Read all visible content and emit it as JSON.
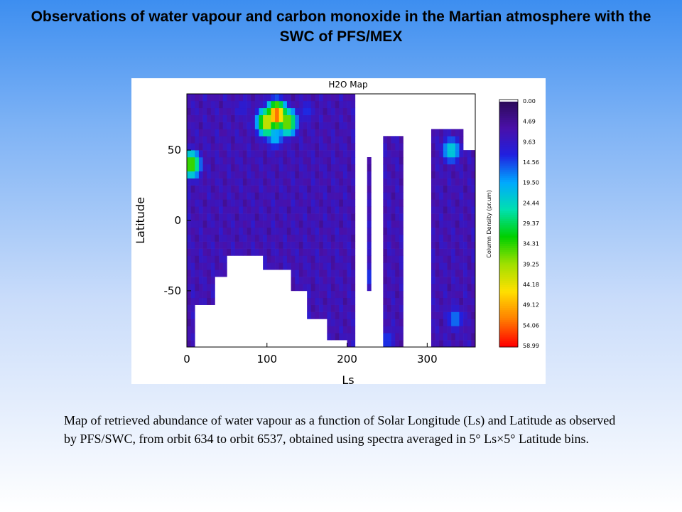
{
  "slide": {
    "title": "Observations of water vapour and carbon monoxide in the Martian atmosphere with the SWC of PFS/MEX",
    "caption": "Map of retrieved abundance of water vapour as a function of Solar Longitude (Ls) and Latitude as observed by PFS/SWC, from orbit 634 to orbit 6537, obtained using spectra averaged in 5° Ls×5° Latitude bins."
  },
  "chart_data": {
    "type": "heatmap",
    "title": "H2O Map",
    "xlabel": "Ls",
    "ylabel": "Latitude",
    "xlim": [
      0,
      360
    ],
    "ylim": [
      -90,
      90
    ],
    "x_ticks": [
      0,
      100,
      200,
      300
    ],
    "y_ticks": [
      50,
      0,
      -50
    ],
    "bin_size_deg": 5,
    "colorbar": {
      "label": "Column Density (pr.um)",
      "ticks": [
        "0.00",
        "4.69",
        "9.63",
        "14.56",
        "19.50",
        "24.44",
        "29.37",
        "34.31",
        "39.25",
        "44.18",
        "49.12",
        "54.06",
        "58.99"
      ],
      "min": 0,
      "max": 58.99,
      "colors": [
        "#ffffff",
        "#2a0a55",
        "#4a10a8",
        "#2020e0",
        "#00a8ff",
        "#00e0b0",
        "#00d000",
        "#a0e000",
        "#ffe000",
        "#ff8000",
        "#ff0000"
      ]
    },
    "coverage": [
      {
        "ls": [
          0,
          10
        ],
        "lat": [
          -90,
          90
        ]
      },
      {
        "ls": [
          10,
          35
        ],
        "lat": [
          -60,
          90
        ]
      },
      {
        "ls": [
          35,
          50
        ],
        "lat": [
          -40,
          90
        ]
      },
      {
        "ls": [
          50,
          75
        ],
        "lat": [
          -25,
          90
        ]
      },
      {
        "ls": [
          75,
          95
        ],
        "lat": [
          -25,
          90
        ]
      },
      {
        "ls": [
          95,
          130
        ],
        "lat": [
          -35,
          90
        ]
      },
      {
        "ls": [
          130,
          150
        ],
        "lat": [
          -50,
          90
        ]
      },
      {
        "ls": [
          150,
          175
        ],
        "lat": [
          -70,
          90
        ]
      },
      {
        "ls": [
          175,
          200
        ],
        "lat": [
          -85,
          90
        ]
      },
      {
        "ls": [
          200,
          210
        ],
        "lat": [
          -90,
          90
        ]
      },
      {
        "ls": [
          222,
          228
        ],
        "lat": [
          -50,
          45
        ]
      },
      {
        "ls": [
          245,
          270
        ],
        "lat": [
          -90,
          60
        ]
      },
      {
        "ls": [
          305,
          345
        ],
        "lat": [
          -90,
          65
        ]
      },
      {
        "ls": [
          345,
          360
        ],
        "lat": [
          -90,
          50
        ]
      }
    ],
    "features": [
      {
        "ls": 112,
        "lat": 75,
        "value": 56.0,
        "description": "peak abundance"
      },
      {
        "ls": 100,
        "lat": 70,
        "value": 45.0
      },
      {
        "ls": 125,
        "lat": 70,
        "value": 40.0
      },
      {
        "ls": 110,
        "lat": 60,
        "value": 22.0
      },
      {
        "ls": 70,
        "lat": 80,
        "value": 12.0
      },
      {
        "ls": 150,
        "lat": 78,
        "value": 14.0
      },
      {
        "ls": 5,
        "lat": 40,
        "value": 38.0
      },
      {
        "ls": 330,
        "lat": 50,
        "value": 25.0
      },
      {
        "ls": 335,
        "lat": -70,
        "value": 18.0
      },
      {
        "ls": 250,
        "lat": -85,
        "value": 15.0
      },
      {
        "ls": 225,
        "lat": -40,
        "value": 15.0
      }
    ]
  }
}
